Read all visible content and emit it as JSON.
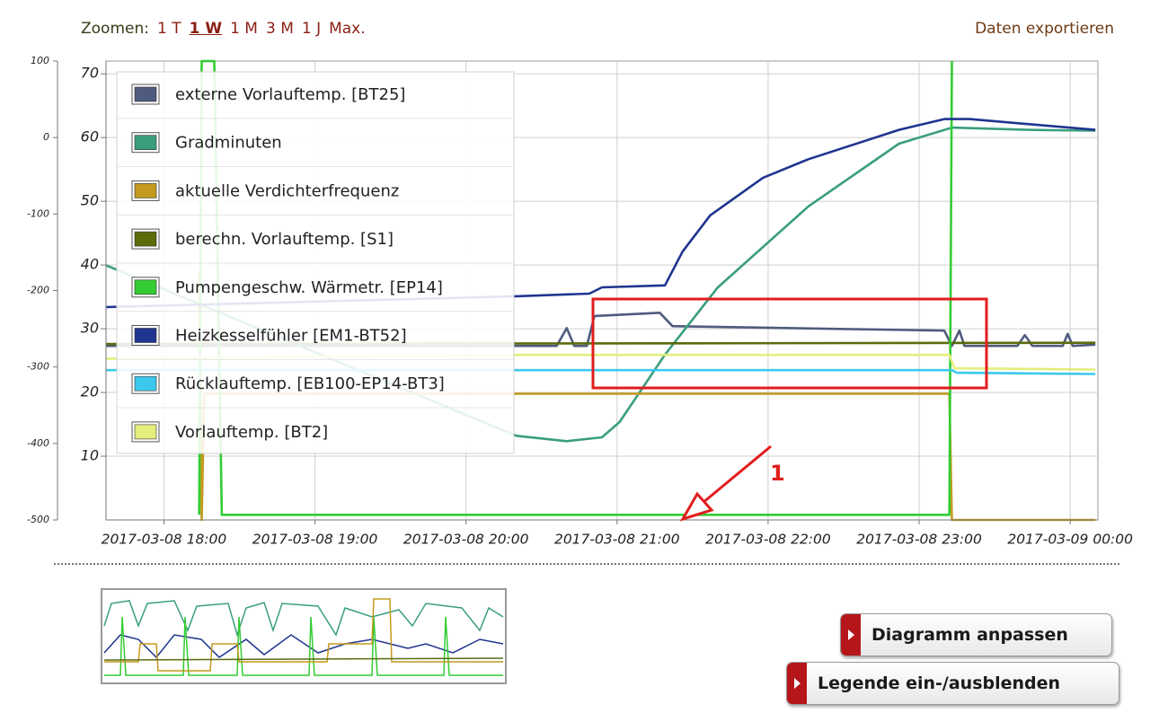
{
  "toolbar": {
    "zoom_label": "Zoomen:",
    "zoom_options": [
      "1 T",
      "1 W",
      "1 M",
      "3 M",
      "1 J",
      "Max."
    ],
    "active_zoom_index": 1,
    "export": "Daten exportieren"
  },
  "chart_data": {
    "type": "line",
    "xlim": [
      "2017-03-08 17:37",
      "2017-03-09 00:11"
    ],
    "xticks": [
      "2017-03-08 18:00",
      "2017-03-08 19:00",
      "2017-03-08 20:00",
      "2017-03-08 21:00",
      "2017-03-08 22:00",
      "2017-03-08 23:00",
      "2017-03-09 00:00"
    ],
    "ylim": [
      0,
      72
    ],
    "yticks": [
      10,
      20,
      30,
      40,
      50,
      60,
      70
    ],
    "y2lim": [
      -500,
      100
    ],
    "y2ticks": [
      -500,
      -400,
      -300,
      -200,
      -100,
      0,
      100
    ],
    "grid": true,
    "legend": "top-left",
    "annotation": "1",
    "series": [
      {
        "name": "externe Vorlauftemp. [BT25]",
        "color": "#4f5b7e",
        "x": [
          "2017-03-08 17:37",
          "2017-03-08 20:36",
          "2017-03-08 20:40",
          "2017-03-08 20:43",
          "2017-03-08 20:48",
          "2017-03-08 20:51",
          "2017-03-08 21:17",
          "2017-03-08 21:22",
          "2017-03-08 23:10",
          "2017-03-08 23:13",
          "2017-03-08 23:16",
          "2017-03-08 23:18",
          "2017-03-08 23:39",
          "2017-03-08 23:42",
          "2017-03-08 23:45",
          "2017-03-08 23:57",
          "2017-03-08 23:59",
          "2017-03-09 00:01",
          "2017-03-09 00:10"
        ],
        "values": [
          27.3,
          27.3,
          30.1,
          27.3,
          27.3,
          32.0,
          32.5,
          30.4,
          29.7,
          27.3,
          29.7,
          27.3,
          27.3,
          29.0,
          27.3,
          27.3,
          29.2,
          27.3,
          27.5
        ]
      },
      {
        "name": "Gradminuten",
        "color": "#3a9e7e",
        "axis": "y2",
        "x": [
          "2017-03-08 17:37",
          "2017-03-08 20:20",
          "2017-03-08 20:40",
          "2017-03-08 20:54",
          "2017-03-08 21:01",
          "2017-03-08 21:19",
          "2017-03-08 21:40",
          "2017-03-08 22:16",
          "2017-03-08 22:52",
          "2017-03-08 23:13",
          "2017-03-08 23:45",
          "2017-03-09 00:10"
        ],
        "values": [
          -167,
          -390,
          -397,
          -392,
          -372,
          -284,
          -196,
          -90,
          -8,
          13,
          10,
          9
        ]
      },
      {
        "name": "aktuelle Verdichterfrequenz",
        "color": "#c49a1e",
        "x": [
          "2017-03-08 18:14",
          "2017-03-08 18:15",
          "2017-03-08 18:16",
          "2017-03-08 23:12",
          "2017-03-08 23:13",
          "2017-03-09 00:10"
        ],
        "values": [
          39.0,
          0.0,
          19.8,
          19.8,
          0.0,
          0.0
        ]
      },
      {
        "name": "berechn. Vorlauftemp. [S1]",
        "color": "#5b6b0c",
        "x": [
          "2017-03-08 17:37",
          "2017-03-09 00:10"
        ],
        "values": [
          27.6,
          27.8
        ]
      },
      {
        "name": "Pumpengeschw. Wärmetr. [EP14]",
        "color": "#33cc33",
        "x": [
          "2017-03-08 18:14",
          "2017-03-08 18:15",
          "2017-03-08 18:20",
          "2017-03-08 18:23",
          "2017-03-08 23:12",
          "2017-03-08 23:13"
        ],
        "values": [
          0.8,
          72,
          72,
          0.8,
          0.8,
          72
        ]
      },
      {
        "name": "Heizkesselfühler [EM1-BT52]",
        "color": "#1f3590",
        "x": [
          "2017-03-08 17:37",
          "2017-03-08 20:20",
          "2017-03-08 20:49",
          "2017-03-08 20:54",
          "2017-03-08 21:19",
          "2017-03-08 21:26",
          "2017-03-08 21:37",
          "2017-03-08 21:58",
          "2017-03-08 22:16",
          "2017-03-08 22:52",
          "2017-03-08 23:10",
          "2017-03-08 23:20",
          "2017-03-09 00:10"
        ],
        "values": [
          33.4,
          35.1,
          35.5,
          36.5,
          36.8,
          42.1,
          47.8,
          53.7,
          56.6,
          61.2,
          62.9,
          62.9,
          61.2
        ]
      },
      {
        "name": "Rücklauftemp. [EB100-EP14-BT3]",
        "color": "#3cc8ec",
        "x": [
          "2017-03-08 17:37",
          "2017-03-08 23:13",
          "2017-03-08 23:15",
          "2017-03-09 00:10"
        ],
        "values": [
          23.5,
          23.5,
          23.1,
          22.9
        ]
      },
      {
        "name": "Vorlauftemp. [BT2]",
        "color": "#e4ee7c",
        "x": [
          "2017-03-08 17:37",
          "2017-03-08 20:20",
          "2017-03-08 23:12",
          "2017-03-08 23:14",
          "2017-03-09 00:10"
        ],
        "values": [
          25.3,
          25.9,
          25.9,
          23.8,
          23.6
        ]
      }
    ]
  },
  "buttons": [
    "Diagramm anpassen",
    "Legende ein-/ausblenden"
  ]
}
